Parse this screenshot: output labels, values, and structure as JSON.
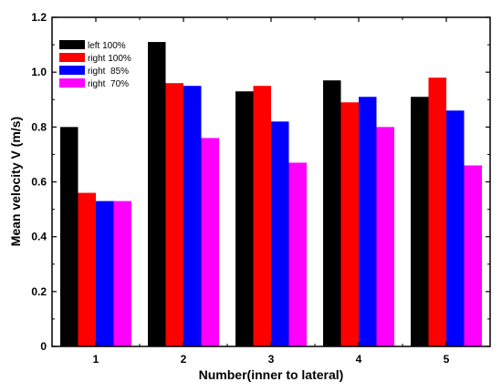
{
  "chart_data": {
    "type": "bar",
    "categories": [
      "1",
      "2",
      "3",
      "4",
      "5"
    ],
    "series": [
      {
        "name": "left 100%",
        "color": "#000000",
        "values": [
          0.8,
          1.11,
          0.93,
          0.97,
          0.91
        ]
      },
      {
        "name": "right 100%",
        "color": "#ff0000",
        "values": [
          0.56,
          0.96,
          0.95,
          0.89,
          0.98
        ]
      },
      {
        "name": "right  85%",
        "color": "#0000ff",
        "values": [
          0.53,
          0.95,
          0.82,
          0.91,
          0.86
        ]
      },
      {
        "name": "right  70%",
        "color": "#ff00ff",
        "values": [
          0.53,
          0.76,
          0.67,
          0.8,
          0.66
        ]
      }
    ],
    "xlabel": "Number(inner to lateral)",
    "ylabel": "Mean velocity V (m/s)",
    "ylim": [
      0,
      1.2
    ],
    "yticks": [
      "0",
      "0.2",
      "0.4",
      "0.6",
      "0.8",
      "1.0",
      "1.2"
    ],
    "grid": false,
    "legend": "top-left"
  }
}
